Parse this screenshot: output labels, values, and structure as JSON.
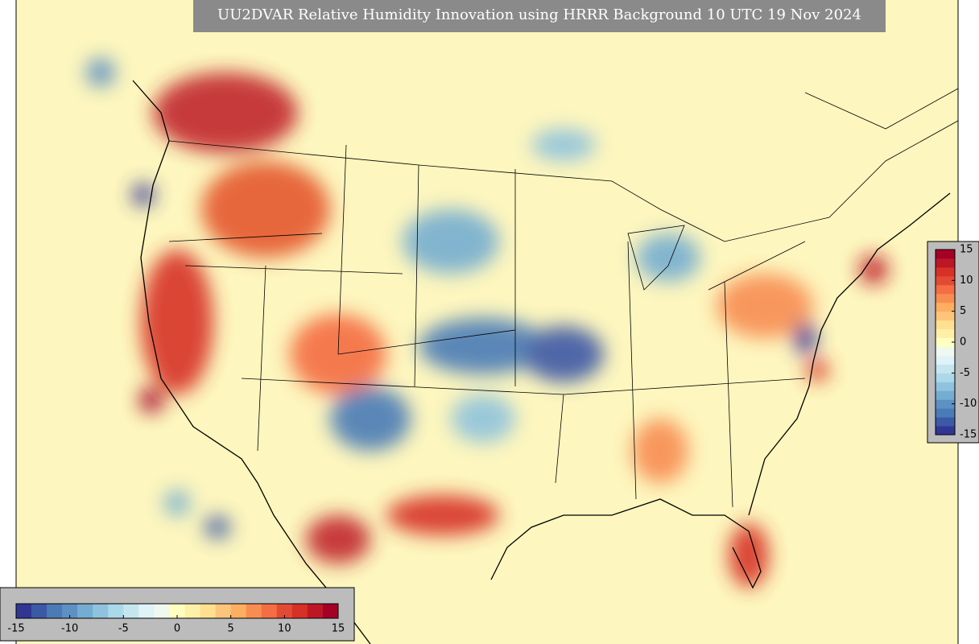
{
  "title": "UU2DVAR Relative Humidity Innovation using HRRR Background 10 UTC 19 Nov 2024",
  "colorbars": [
    {
      "orientation": "horizontal",
      "range": [
        -15,
        15
      ],
      "ticks": [
        -15,
        -10,
        -5,
        0,
        5,
        10,
        15
      ],
      "colors": [
        "#313695",
        "#3c59a6",
        "#4a7bb7",
        "#5d91c3",
        "#74add1",
        "#8fc3dd",
        "#abd9e9",
        "#c6e6ef",
        "#e0f3f8",
        "#f0f9f0",
        "#ffffbf",
        "#fff0a8",
        "#fee090",
        "#fdc57c",
        "#fdae61",
        "#f88d52",
        "#f46d43",
        "#e34a33",
        "#d73027",
        "#bd1726",
        "#a50026"
      ]
    },
    {
      "orientation": "vertical",
      "range": [
        -15,
        15
      ],
      "ticks": [
        15,
        10,
        5,
        0,
        -5,
        -10,
        -15
      ],
      "colors": [
        "#313695",
        "#3c59a6",
        "#4a7bb7",
        "#5d91c3",
        "#74add1",
        "#8fc3dd",
        "#abd9e9",
        "#c6e6ef",
        "#e0f3f8",
        "#f0f9f0",
        "#ffffbf",
        "#fff0a8",
        "#fee090",
        "#fdc57c",
        "#fdae61",
        "#f88d52",
        "#f46d43",
        "#e34a33",
        "#d73027",
        "#bd1726",
        "#a50026"
      ]
    }
  ]
}
